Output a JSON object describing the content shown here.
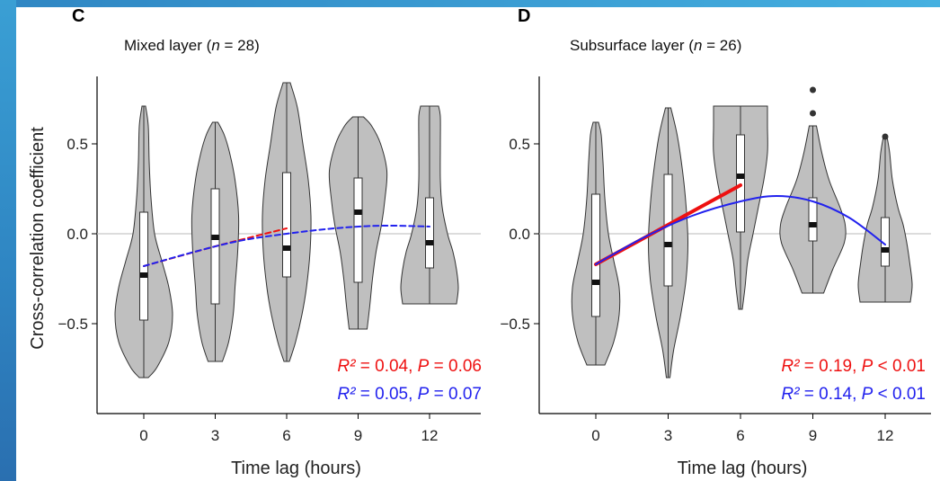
{
  "chart_data": [
    {
      "type": "violin",
      "panel_label": "C",
      "title_prefix": "Mixed layer (",
      "title_n_symbol": "n",
      "title_suffix": " = 28)",
      "n": 28,
      "xlabel": "Time lag (hours)",
      "ylabel": "Cross-correlation coefficient",
      "categories": [
        "0",
        "3",
        "6",
        "9",
        "12"
      ],
      "x": [
        0,
        3,
        6,
        9,
        12
      ],
      "y_ticks": [
        -0.5,
        0.0,
        0.5
      ],
      "y_tick_labels": [
        "−0.5",
        "0.0",
        "0.5"
      ],
      "ylim": [
        -0.85,
        0.9
      ],
      "reference_line_y": 0,
      "violins": [
        {
          "x": 0,
          "min": -0.8,
          "max": 0.71,
          "q1": -0.48,
          "median": -0.23,
          "q3": 0.12,
          "profile": [
            [
              -0.8,
              0.05
            ],
            [
              -0.74,
              0.15
            ],
            [
              -0.6,
              0.28
            ],
            [
              -0.45,
              0.32
            ],
            [
              -0.3,
              0.28
            ],
            [
              -0.15,
              0.2
            ],
            [
              0.0,
              0.12
            ],
            [
              0.2,
              0.08
            ],
            [
              0.4,
              0.06
            ],
            [
              0.6,
              0.05
            ],
            [
              0.71,
              0.02
            ]
          ],
          "outliers": []
        },
        {
          "x": 3,
          "min": -0.71,
          "max": 0.62,
          "q1": -0.39,
          "median": -0.02,
          "q3": 0.25,
          "profile": [
            [
              -0.71,
              0.08
            ],
            [
              -0.6,
              0.15
            ],
            [
              -0.45,
              0.2
            ],
            [
              -0.3,
              0.22
            ],
            [
              -0.1,
              0.25
            ],
            [
              0.1,
              0.26
            ],
            [
              0.3,
              0.22
            ],
            [
              0.45,
              0.16
            ],
            [
              0.55,
              0.1
            ],
            [
              0.62,
              0.03
            ]
          ],
          "outliers": []
        },
        {
          "x": 6,
          "min": -0.71,
          "max": 0.84,
          "q1": -0.24,
          "median": -0.08,
          "q3": 0.34,
          "profile": [
            [
              -0.71,
              0.03
            ],
            [
              -0.6,
              0.1
            ],
            [
              -0.45,
              0.17
            ],
            [
              -0.3,
              0.22
            ],
            [
              -0.1,
              0.26
            ],
            [
              0.1,
              0.27
            ],
            [
              0.3,
              0.24
            ],
            [
              0.5,
              0.18
            ],
            [
              0.7,
              0.12
            ],
            [
              0.84,
              0.04
            ]
          ],
          "outliers": []
        },
        {
          "x": 9,
          "min": -0.53,
          "max": 0.65,
          "q1": -0.27,
          "median": 0.12,
          "q3": 0.31,
          "profile": [
            [
              -0.53,
              0.1
            ],
            [
              -0.4,
              0.13
            ],
            [
              -0.25,
              0.16
            ],
            [
              -0.1,
              0.2
            ],
            [
              0.05,
              0.26
            ],
            [
              0.2,
              0.3
            ],
            [
              0.35,
              0.32
            ],
            [
              0.5,
              0.25
            ],
            [
              0.6,
              0.15
            ],
            [
              0.65,
              0.06
            ]
          ],
          "outliers": []
        },
        {
          "x": 12,
          "min": -0.39,
          "max": 0.71,
          "q1": -0.19,
          "median": -0.05,
          "q3": 0.2,
          "profile": [
            [
              -0.39,
              0.3
            ],
            [
              -0.3,
              0.32
            ],
            [
              -0.2,
              0.3
            ],
            [
              -0.1,
              0.26
            ],
            [
              0.0,
              0.2
            ],
            [
              0.15,
              0.14
            ],
            [
              0.3,
              0.12
            ],
            [
              0.5,
              0.12
            ],
            [
              0.65,
              0.12
            ],
            [
              0.71,
              0.1
            ]
          ],
          "outliers": []
        }
      ],
      "fits": [
        {
          "kind": "linear",
          "color": "#ee1111",
          "dashed": true,
          "x": [
            0,
            3,
            6
          ],
          "y": [
            -0.18,
            -0.07,
            0.03
          ]
        },
        {
          "kind": "quadratic",
          "color": "#2222ee",
          "dashed": true,
          "x": [
            0,
            2,
            4,
            6,
            8,
            10,
            12
          ],
          "y": [
            -0.18,
            -0.105,
            -0.04,
            0.0,
            0.03,
            0.045,
            0.04
          ]
        }
      ],
      "stats": [
        {
          "color": "#ee1111",
          "r2_symbol": "R²",
          "r2_value": " = 0.04, ",
          "p_symbol": "P",
          "p_value": " = 0.06"
        },
        {
          "color": "#2222ee",
          "r2_symbol": "R²",
          "r2_value": " = 0.05, ",
          "p_symbol": "P",
          "p_value": " = 0.07"
        }
      ],
      "grid": false,
      "violin_fill": "#bfbfbf"
    },
    {
      "type": "violin",
      "panel_label": "D",
      "title_prefix": "Subsurface layer (",
      "title_n_symbol": "n",
      "title_suffix": " = 26)",
      "n": 26,
      "xlabel": "Time lag (hours)",
      "ylabel": "",
      "categories": [
        "0",
        "3",
        "6",
        "9",
        "12"
      ],
      "x": [
        0,
        3,
        6,
        9,
        12
      ],
      "y_ticks": [
        -0.5,
        0.0,
        0.5
      ],
      "y_tick_labels": [
        "−0.5",
        "0.0",
        "0.5"
      ],
      "ylim": [
        -0.85,
        0.9
      ],
      "reference_line_y": 0,
      "violins": [
        {
          "x": 0,
          "min": -0.73,
          "max": 0.62,
          "q1": -0.46,
          "median": -0.27,
          "q3": 0.22,
          "profile": [
            [
              -0.73,
              0.1
            ],
            [
              -0.6,
              0.2
            ],
            [
              -0.45,
              0.26
            ],
            [
              -0.3,
              0.26
            ],
            [
              -0.15,
              0.2
            ],
            [
              0.0,
              0.14
            ],
            [
              0.2,
              0.1
            ],
            [
              0.4,
              0.08
            ],
            [
              0.55,
              0.06
            ],
            [
              0.62,
              0.03
            ]
          ],
          "outliers": []
        },
        {
          "x": 3,
          "min": -0.8,
          "max": 0.7,
          "q1": -0.29,
          "median": -0.06,
          "q3": 0.33,
          "profile": [
            [
              -0.8,
              0.02
            ],
            [
              -0.65,
              0.06
            ],
            [
              -0.45,
              0.14
            ],
            [
              -0.25,
              0.2
            ],
            [
              -0.05,
              0.22
            ],
            [
              0.15,
              0.2
            ],
            [
              0.35,
              0.16
            ],
            [
              0.55,
              0.1
            ],
            [
              0.7,
              0.03
            ]
          ],
          "outliers": []
        },
        {
          "x": 6,
          "min": -0.42,
          "max": 0.71,
          "q1": 0.01,
          "median": 0.32,
          "q3": 0.55,
          "profile": [
            [
              -0.42,
              0.02
            ],
            [
              -0.3,
              0.05
            ],
            [
              -0.15,
              0.08
            ],
            [
              0.0,
              0.14
            ],
            [
              0.15,
              0.2
            ],
            [
              0.3,
              0.26
            ],
            [
              0.45,
              0.3
            ],
            [
              0.6,
              0.3
            ],
            [
              0.71,
              0.3
            ]
          ],
          "outliers": []
        },
        {
          "x": 9,
          "min": -0.33,
          "max": 0.6,
          "q1": -0.04,
          "median": 0.05,
          "q3": 0.2,
          "profile": [
            [
              -0.33,
              0.12
            ],
            [
              -0.2,
              0.22
            ],
            [
              -0.05,
              0.35
            ],
            [
              0.05,
              0.36
            ],
            [
              0.15,
              0.3
            ],
            [
              0.3,
              0.18
            ],
            [
              0.45,
              0.1
            ],
            [
              0.6,
              0.04
            ]
          ],
          "outliers": [
            0.67,
            0.8
          ]
        },
        {
          "x": 12,
          "min": -0.38,
          "max": 0.54,
          "q1": -0.18,
          "median": -0.09,
          "q3": 0.09,
          "profile": [
            [
              -0.38,
              0.28
            ],
            [
              -0.28,
              0.3
            ],
            [
              -0.15,
              0.27
            ],
            [
              -0.05,
              0.24
            ],
            [
              0.05,
              0.2
            ],
            [
              0.15,
              0.14
            ],
            [
              0.3,
              0.08
            ],
            [
              0.45,
              0.05
            ],
            [
              0.54,
              0.02
            ]
          ],
          "outliers": [
            0.54
          ]
        }
      ],
      "fits": [
        {
          "kind": "linear",
          "color": "#ee1111",
          "dashed": false,
          "width": 4,
          "x": [
            0,
            3,
            6
          ],
          "y": [
            -0.17,
            0.05,
            0.27
          ]
        },
        {
          "kind": "quadratic",
          "color": "#2222ee",
          "dashed": false,
          "width": 2,
          "x": [
            0,
            2,
            4,
            6,
            7.5,
            9,
            10.5,
            12
          ],
          "y": [
            -0.17,
            -0.02,
            0.1,
            0.18,
            0.21,
            0.18,
            0.09,
            -0.06
          ]
        }
      ],
      "stats": [
        {
          "color": "#ee1111",
          "r2_symbol": "R²",
          "r2_value": " = 0.19, ",
          "p_symbol": "P",
          "p_value": " < 0.01"
        },
        {
          "color": "#2222ee",
          "r2_symbol": "R²",
          "r2_value": " = 0.14, ",
          "p_symbol": "P",
          "p_value": " < 0.01"
        }
      ],
      "grid": false,
      "violin_fill": "#bfbfbf"
    }
  ]
}
